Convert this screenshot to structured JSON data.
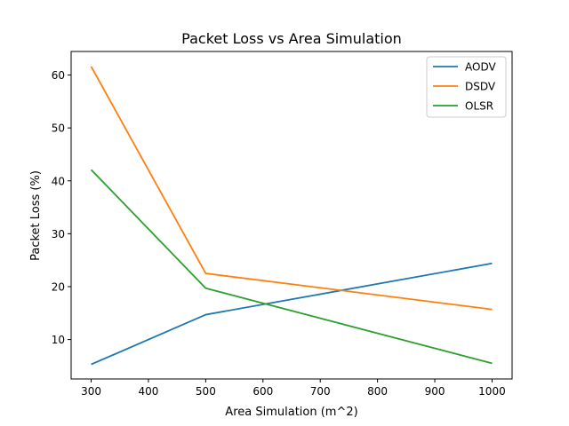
{
  "chart_data": {
    "type": "line",
    "title": "Packet Loss vs Area Simulation",
    "xlabel": "Area Simulation (m^2)",
    "ylabel": "Packet Loss (%)",
    "x": [
      300,
      500,
      1000
    ],
    "xlim": [
      265,
      1035
    ],
    "ylim": [
      2.55,
      64.45
    ],
    "xticks": [
      300,
      400,
      500,
      600,
      700,
      800,
      900,
      1000
    ],
    "yticks": [
      10,
      20,
      30,
      40,
      50,
      60
    ],
    "grid": false,
    "legend_position": "top-right",
    "series": [
      {
        "name": "AODV",
        "color": "#1f77b4",
        "values": [
          5.3,
          14.7,
          24.4
        ]
      },
      {
        "name": "DSDV",
        "color": "#ff7f0e",
        "values": [
          61.6,
          22.5,
          15.7
        ]
      },
      {
        "name": "OLSR",
        "color": "#2ca02c",
        "values": [
          42.1,
          19.7,
          5.5
        ]
      }
    ]
  }
}
